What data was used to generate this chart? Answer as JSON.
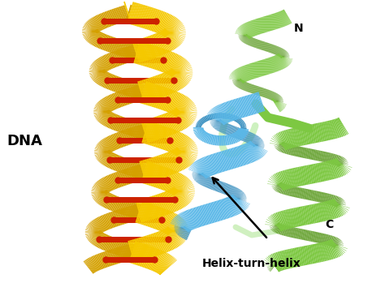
{
  "fig_width": 4.74,
  "fig_height": 3.49,
  "dpi": 100,
  "bg_color": "#ffffff",
  "dna_color": "#F5C800",
  "dna_dark": "#D4A000",
  "base_color": "#CC2200",
  "blue_color": "#5BB8E8",
  "blue_dark": "#3A90C0",
  "green_color": "#7DC842",
  "green_dark": "#5A9A20",
  "turn_color": "#B8E0F0",
  "label_dna": "DNA",
  "label_n": "N",
  "label_c": "C",
  "label_hth": "Helix-turn-helix",
  "label_hth_fontsize": 10,
  "label_dna_fontsize": 13,
  "label_nc_fontsize": 10,
  "arrow_color": "#000000"
}
